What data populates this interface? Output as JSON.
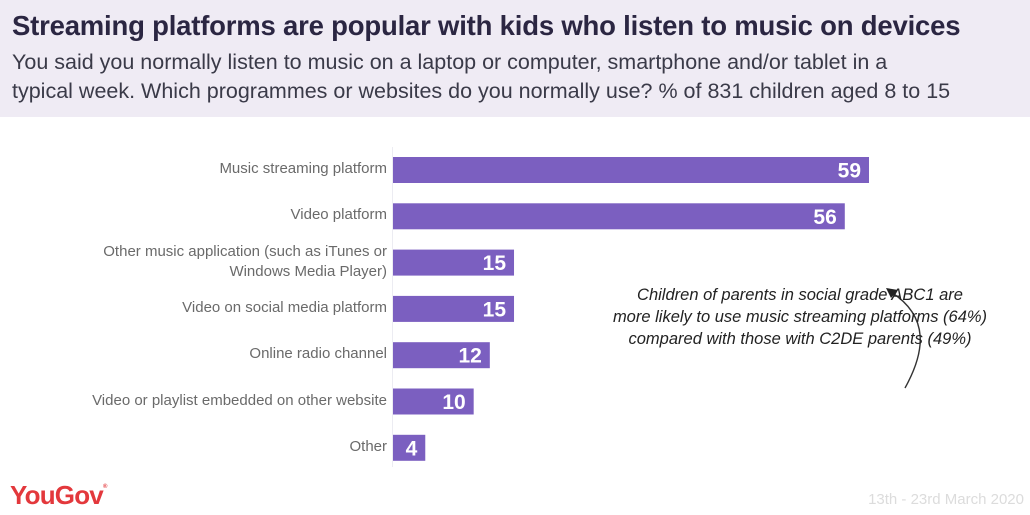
{
  "header": {
    "title": "Streaming platforms are popular with kids who listen to music on devices",
    "subtitle_line1": "You said you normally listen to music on a laptop or computer, smartphone and/or tablet in a",
    "subtitle_line2": "typical week. Which programmes or websites do you normally use? % of 831 children aged 8 to 15"
  },
  "chart_data": {
    "type": "bar",
    "orientation": "horizontal",
    "title": "Streaming platforms are popular with kids who listen to music on devices",
    "xlabel": "",
    "ylabel": "",
    "unit": "%",
    "xlim": [
      0,
      60
    ],
    "grid": false,
    "categories": [
      "Music streaming platform",
      "Video platform",
      "Other music application (such as iTunes or Windows Media Player)",
      "Video on social media platform",
      "Online radio channel",
      "Video or playlist embedded on other website",
      "Other"
    ],
    "category_lines": [
      [
        "Music streaming platform"
      ],
      [
        "Video platform"
      ],
      [
        "Other music application (such as iTunes or",
        "Windows Media Player)"
      ],
      [
        "Video on social media platform"
      ],
      [
        "Online radio channel"
      ],
      [
        "Video or playlist embedded on other website"
      ],
      [
        "Other"
      ]
    ],
    "values": [
      59,
      56,
      15,
      15,
      12,
      10,
      4
    ],
    "bar_color": "#7b5fc0",
    "label_color": "#ffffff",
    "annotation": {
      "lines": [
        "Children of parents in social grade ABC1 are",
        "more likely to use music streaming platforms (64%)",
        "compared with those with C2DE parents (49%)"
      ],
      "points_to": "Music streaming platform"
    }
  },
  "footer": {
    "brand": "YouGov",
    "brand_mark": "®",
    "date": "13th - 23rd March 2020"
  },
  "colors": {
    "header_bg": "#efebf4",
    "title": "#2b2642",
    "brand": "#e3383c",
    "bar": "#7b5fc0"
  }
}
